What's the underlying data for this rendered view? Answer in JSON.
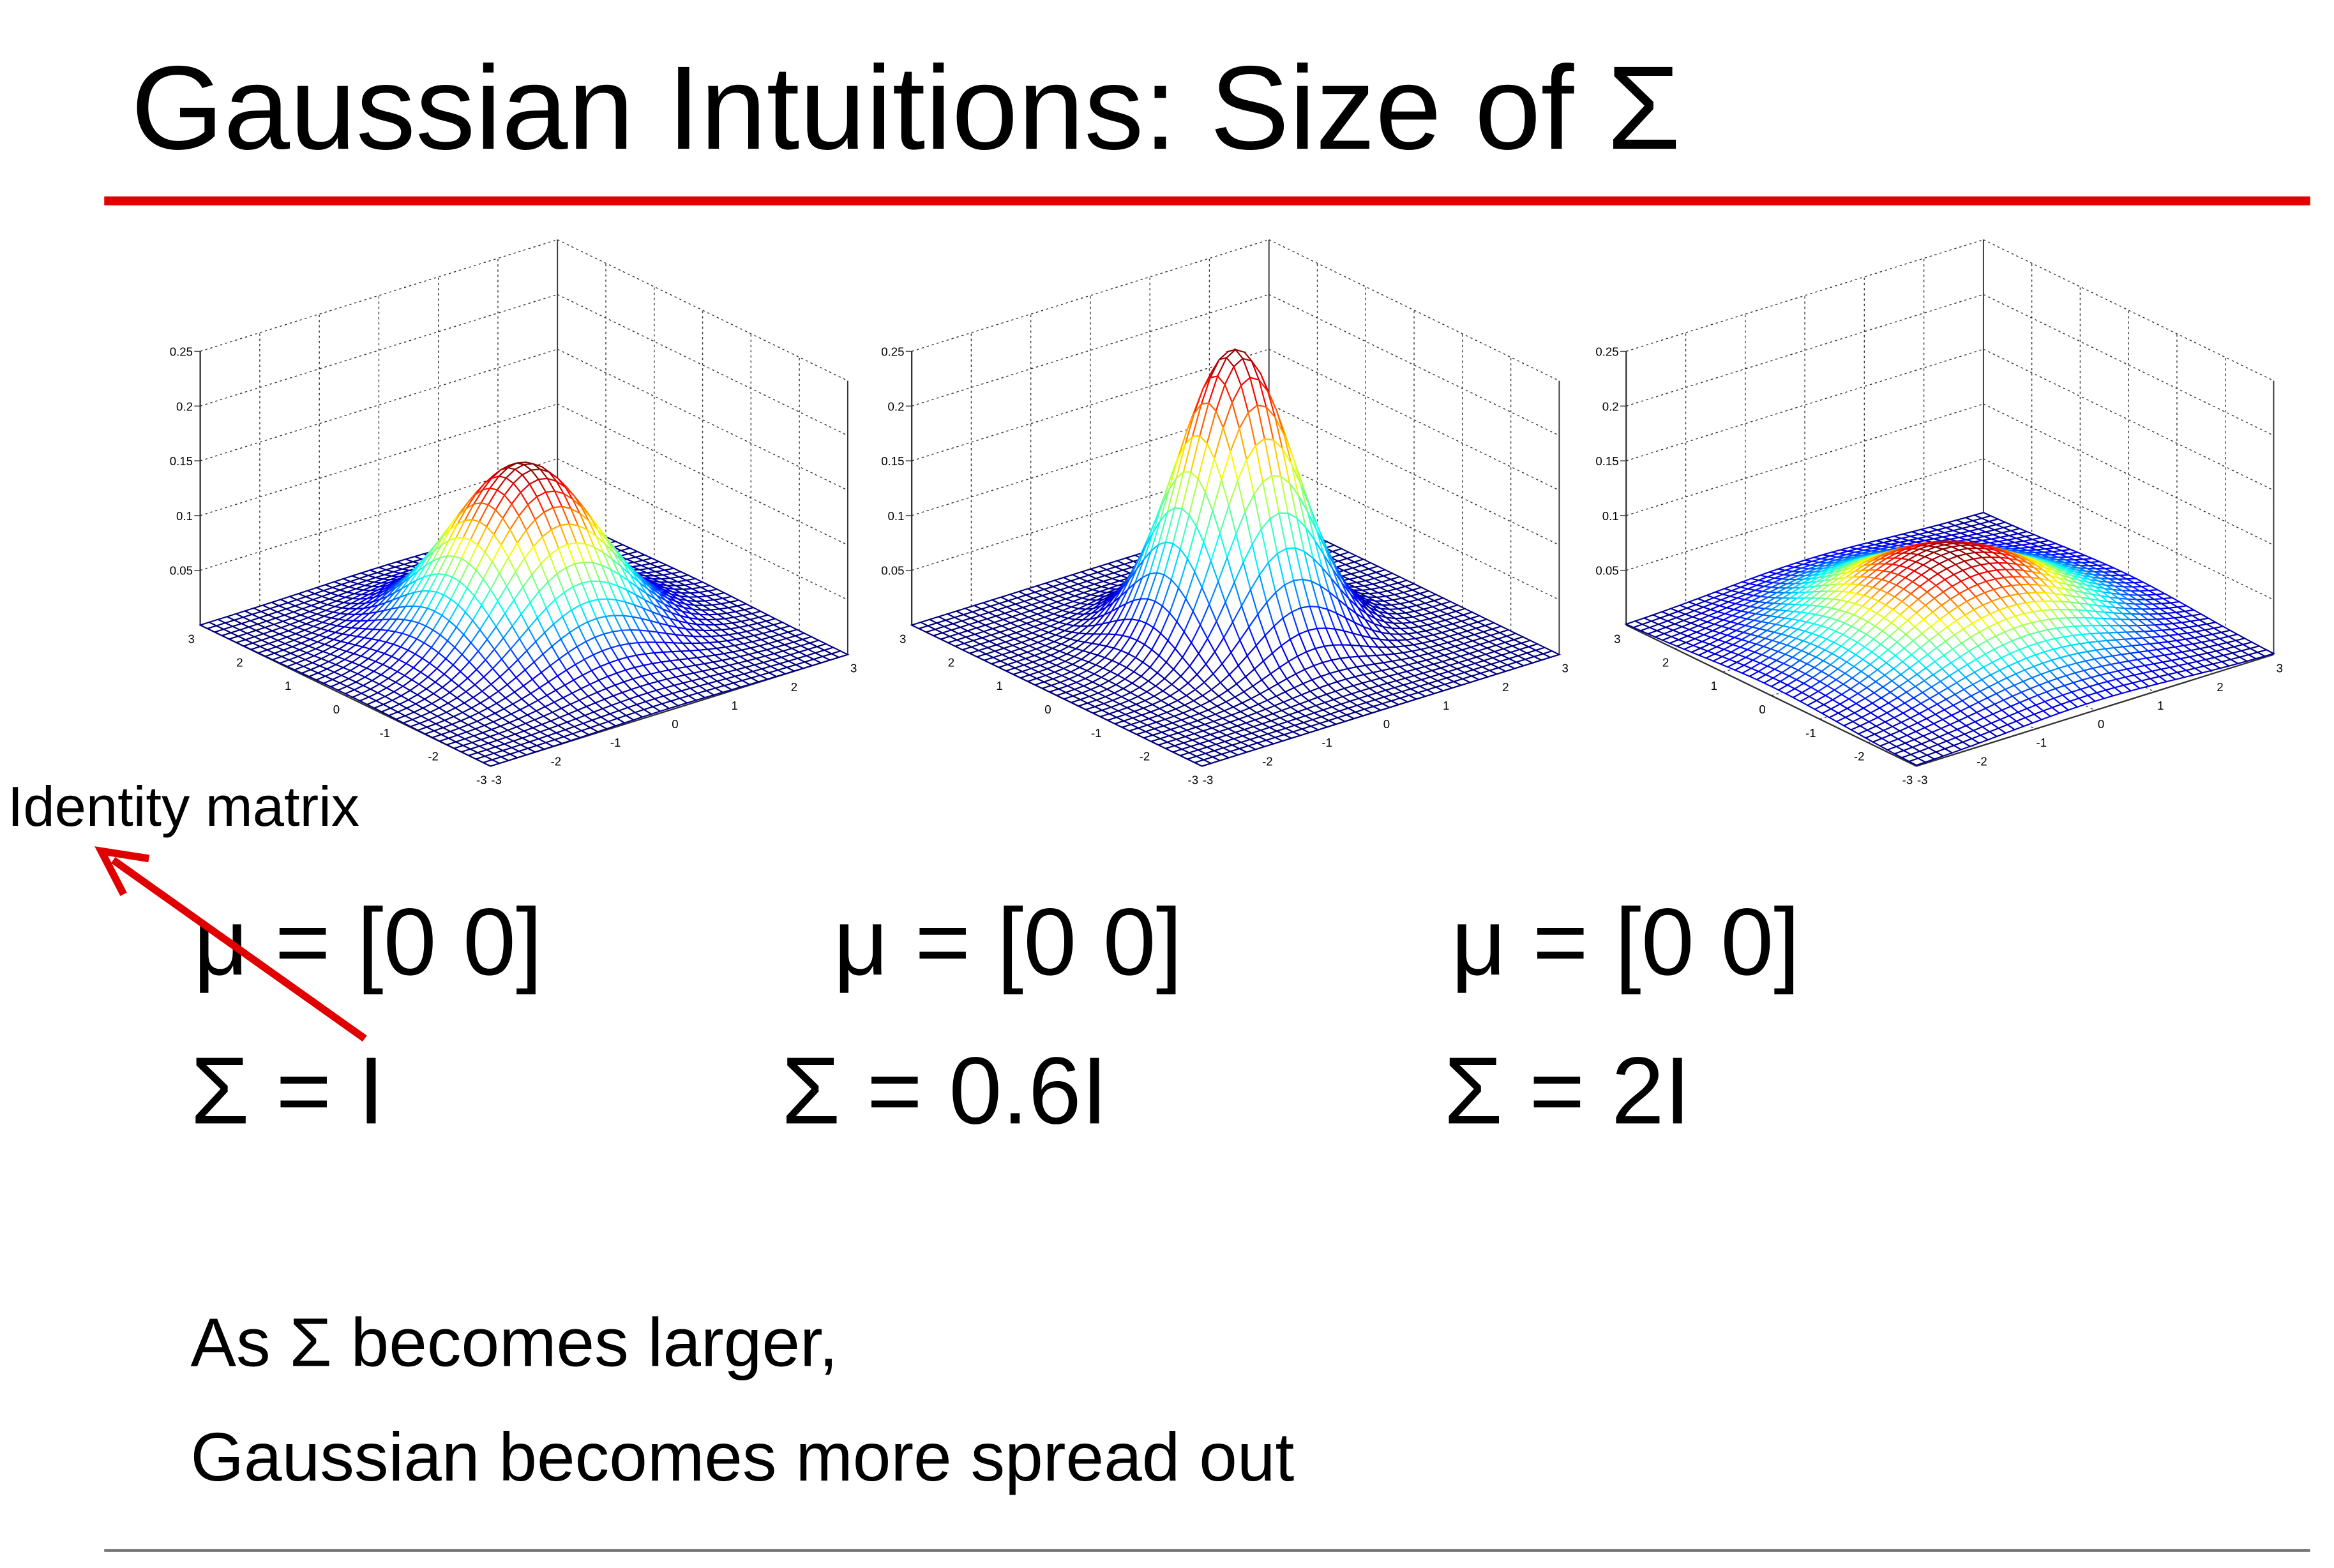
{
  "title": "Gaussian Intuitions: Size of Σ",
  "annotation": "Identity matrix",
  "plots": [
    {
      "type": "surface",
      "peak": 0.16,
      "zlim": [
        0,
        0.25
      ],
      "zticks": [
        0.05,
        0.1,
        0.15,
        0.2,
        0.25
      ],
      "xlim": [
        -3,
        3
      ],
      "xticks": [
        -3,
        -2,
        -1,
        0,
        1,
        2,
        3
      ],
      "ylim": [
        -3,
        3
      ],
      "yticks": [
        -3,
        -2,
        -1,
        0,
        1,
        2,
        3
      ],
      "mean": "μ = [0 0]",
      "covariance": "Σ = I"
    },
    {
      "type": "surface",
      "peak": 0.265,
      "zlim": [
        0,
        0.25
      ],
      "zticks": [
        0.05,
        0.1,
        0.15,
        0.2,
        0.25
      ],
      "xlim": [
        -3,
        3
      ],
      "xticks": [
        -3,
        -2,
        -1,
        0,
        1,
        2,
        3
      ],
      "ylim": [
        -3,
        3
      ],
      "yticks": [
        -3,
        -2,
        -1,
        0,
        1,
        2,
        3
      ],
      "mean": "μ = [0 0]",
      "covariance": "Σ = 0.6I"
    },
    {
      "type": "surface",
      "peak": 0.08,
      "zlim": [
        0,
        0.25
      ],
      "zticks": [
        0.05,
        0.1,
        0.15,
        0.2,
        0.25
      ],
      "xlim": [
        -3,
        3
      ],
      "xticks": [
        -3,
        -2,
        -1,
        0,
        1,
        2,
        3
      ],
      "ylim": [
        -3,
        3
      ],
      "yticks": [
        -3,
        -2,
        -1,
        0,
        1,
        2,
        3
      ],
      "mean": "μ = [0 0]",
      "covariance": "Σ = 2I"
    }
  ],
  "caption": [
    "As Σ becomes larger,",
    "Gaussian becomes more spread out"
  ]
}
